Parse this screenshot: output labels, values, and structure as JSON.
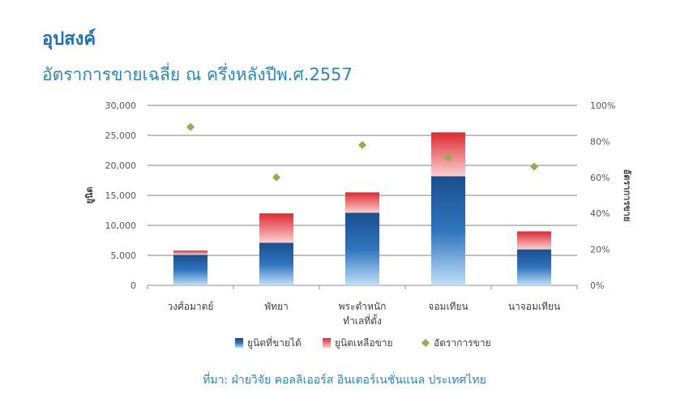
{
  "header": {
    "title": "อุปสงค์",
    "subtitle": "อัตราการขายเฉลี่ย ณ ครึ่งหลังปีพ.ศ.2557"
  },
  "footer": {
    "source": "ที่มา: ฝ่ายวิจัย คอลลิเออร์ส อินเตอร์เนชั่นแนล ประเทศไทย"
  },
  "colors": {
    "sold": "#1f5a9e",
    "remaining": "#e8383d",
    "rate": "#8db04a",
    "heading": "#1f6fb6"
  },
  "chart_data": {
    "type": "bar",
    "stacked": true,
    "categories": [
      "วงศ์อมาตย์",
      "พัทยา",
      "พระตำหนัก|ทำเลที่ตั้ง",
      "จอมเทียน",
      "นาจอมเทียน"
    ],
    "series": [
      {
        "name": "ยูนิตที่ขายได้",
        "values": [
          5100,
          7100,
          12100,
          18200,
          6000
        ],
        "axis": "left",
        "kind": "bar"
      },
      {
        "name": "ยูนิตเหลือขาย",
        "values": [
          700,
          4900,
          3400,
          7300,
          3000
        ],
        "axis": "left",
        "kind": "bar"
      },
      {
        "name": "อัตราการขาย",
        "values": [
          88,
          60,
          78,
          71,
          66
        ],
        "axis": "right",
        "kind": "scatter"
      }
    ],
    "ylabel": "ยูนิต",
    "y2label": "อัตราการขาย",
    "ylim": [
      0,
      30000
    ],
    "yticks": [
      "0",
      "5,000",
      "10,000",
      "15,000",
      "20,000",
      "25,000",
      "30,000"
    ],
    "y2lim": [
      0,
      100
    ],
    "y2ticks": [
      "0%",
      "20%",
      "40%",
      "60%",
      "80%",
      "100%"
    ],
    "grid": true,
    "legend": "bottom"
  }
}
